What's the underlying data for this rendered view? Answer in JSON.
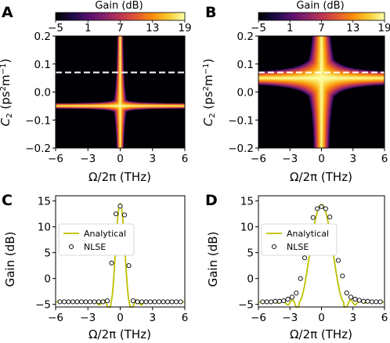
{
  "chart_data": [
    {
      "panel": "A",
      "type": "heatmap",
      "colorbar": {
        "title": "Gain (dB)",
        "ticks": [
          "−5",
          "1",
          "7",
          "13",
          "19"
        ],
        "range": [
          -5,
          19
        ],
        "colormap": "inferno"
      },
      "xlabel": "Ω/2π (THz)",
      "ylabel": "C2 (ps2m−1)",
      "xticks": [
        "−6",
        "−3",
        "0",
        "3",
        "6"
      ],
      "yticks": [
        "0.2",
        "0.1",
        "0.0",
        "−0.1",
        "−0.2"
      ],
      "xlim": [
        -6,
        6
      ],
      "ylim": [
        -0.2,
        0.2
      ],
      "dashed_line_y": 0.07,
      "horizontal_band_center": -0.05,
      "vertical_band_width_thz": 1.5,
      "horizontal_band_width": 0.008
    },
    {
      "panel": "B",
      "type": "heatmap",
      "colorbar": {
        "title": "Gain (dB)",
        "ticks": [
          "−5",
          "1",
          "7",
          "13",
          "19"
        ],
        "range": [
          -5,
          19
        ],
        "colormap": "inferno"
      },
      "xlabel": "Ω/2π (THz)",
      "ylabel": "C2 (ps2m−1)",
      "xticks": [
        "−6",
        "−3",
        "0",
        "3",
        "6"
      ],
      "yticks": [
        "0.2",
        "0.1",
        "0.0",
        "−0.1",
        "−0.2"
      ],
      "xlim": [
        -6,
        6
      ],
      "ylim": [
        -0.2,
        0.2
      ],
      "dashed_line_y": 0.07,
      "horizontal_band_center": 0.05,
      "vertical_band_width_thz": 4.0,
      "horizontal_band_width": 0.012
    },
    {
      "panel": "C",
      "type": "line",
      "xlabel": "Ω/2π (THz)",
      "ylabel": "Gain (dB)",
      "xticks": [
        "−6",
        "−3",
        "0",
        "3",
        "6"
      ],
      "yticks": [
        "15",
        "10",
        "5",
        "0",
        "−5"
      ],
      "xlim": [
        -6,
        6
      ],
      "ylim": [
        -5.5,
        16
      ],
      "legend": [
        "Analytical",
        "NLSE"
      ],
      "legend_position": "center-left",
      "series": [
        {
          "name": "Analytical",
          "kind": "line",
          "color": "#bfbf00",
          "peak": 14.5,
          "baseline": -4.5,
          "half_width": 0.85,
          "ripple_period": 0.9
        },
        {
          "name": "NLSE",
          "kind": "markers",
          "points": [
            [
              -5.6,
              -4.5
            ],
            [
              -5.2,
              -4.5
            ],
            [
              -4.8,
              -4.5
            ],
            [
              -4.4,
              -4.5
            ],
            [
              -4.0,
              -4.5
            ],
            [
              -3.6,
              -4.5
            ],
            [
              -3.2,
              -4.5
            ],
            [
              -2.8,
              -4.5
            ],
            [
              -2.4,
              -4.5
            ],
            [
              -2.0,
              -4.5
            ],
            [
              -1.6,
              -4.5
            ],
            [
              -1.2,
              -4.3
            ],
            [
              -0.8,
              3.0
            ],
            [
              -0.4,
              12.5
            ],
            [
              0.0,
              14.0
            ],
            [
              0.4,
              12.3
            ],
            [
              0.8,
              2.5
            ],
            [
              1.2,
              -4.3
            ],
            [
              1.6,
              -4.5
            ],
            [
              2.0,
              -4.5
            ],
            [
              2.4,
              -4.5
            ],
            [
              2.8,
              -4.5
            ],
            [
              3.2,
              -4.5
            ],
            [
              3.6,
              -4.5
            ],
            [
              4.0,
              -4.5
            ],
            [
              4.4,
              -4.5
            ],
            [
              4.8,
              -4.5
            ],
            [
              5.2,
              -4.5
            ],
            [
              5.6,
              -4.5
            ]
          ]
        }
      ]
    },
    {
      "panel": "D",
      "type": "line",
      "xlabel": "Ω/2π (THz)",
      "ylabel": "Gain (dB)",
      "xticks": [
        "−6",
        "−3",
        "0",
        "3",
        "6"
      ],
      "yticks": [
        "15",
        "10",
        "5",
        "0",
        "−5"
      ],
      "xlim": [
        -6,
        6
      ],
      "ylim": [
        -5.5,
        16
      ],
      "legend": [
        "Analytical",
        "NLSE"
      ],
      "legend_position": "center-left",
      "series": [
        {
          "name": "Analytical",
          "kind": "line",
          "color": "#bfbf00",
          "peak": 14.3,
          "baseline": -4.5,
          "half_width": 2.1,
          "ripple_period": 0.9
        },
        {
          "name": "NLSE",
          "kind": "markers",
          "points": [
            [
              -5.6,
              -4.5
            ],
            [
              -5.2,
              -4.5
            ],
            [
              -4.8,
              -4.5
            ],
            [
              -4.4,
              -4.4
            ],
            [
              -4.0,
              -4.4
            ],
            [
              -3.6,
              -4.3
            ],
            [
              -3.2,
              -4.0
            ],
            [
              -2.8,
              -3.6
            ],
            [
              -2.4,
              -2.8
            ],
            [
              -2.0,
              0.0
            ],
            [
              -1.6,
              4.0
            ],
            [
              -1.2,
              8.0
            ],
            [
              -0.8,
              11.8
            ],
            [
              -0.4,
              13.5
            ],
            [
              0.0,
              13.9
            ],
            [
              0.4,
              13.5
            ],
            [
              0.8,
              11.9
            ],
            [
              1.2,
              8.3
            ],
            [
              1.6,
              3.5
            ],
            [
              2.0,
              0.5
            ],
            [
              2.4,
              -2.8
            ],
            [
              2.8,
              -3.6
            ],
            [
              3.2,
              -4.0
            ],
            [
              3.6,
              -4.2
            ],
            [
              4.0,
              -4.4
            ],
            [
              4.4,
              -4.4
            ],
            [
              4.8,
              -4.5
            ],
            [
              5.2,
              -4.5
            ],
            [
              5.6,
              -4.5
            ]
          ]
        }
      ]
    }
  ],
  "labels": {
    "A": "A",
    "B": "B",
    "C": "C",
    "D": "D",
    "cb_title": "Gain (dB)",
    "xlabel_main": "Ω/2π (THz)",
    "legend_analytical": "Analytical",
    "legend_nlse": "NLSE",
    "gain_label": "Gain (dB)",
    "c2_label": "C",
    "c2_sub": "2",
    "c2_units_open": " (ps",
    "c2_units_sup": "2",
    "c2_units_m": "m",
    "c2_units_sup2": "−1",
    "c2_units_close": ")"
  }
}
